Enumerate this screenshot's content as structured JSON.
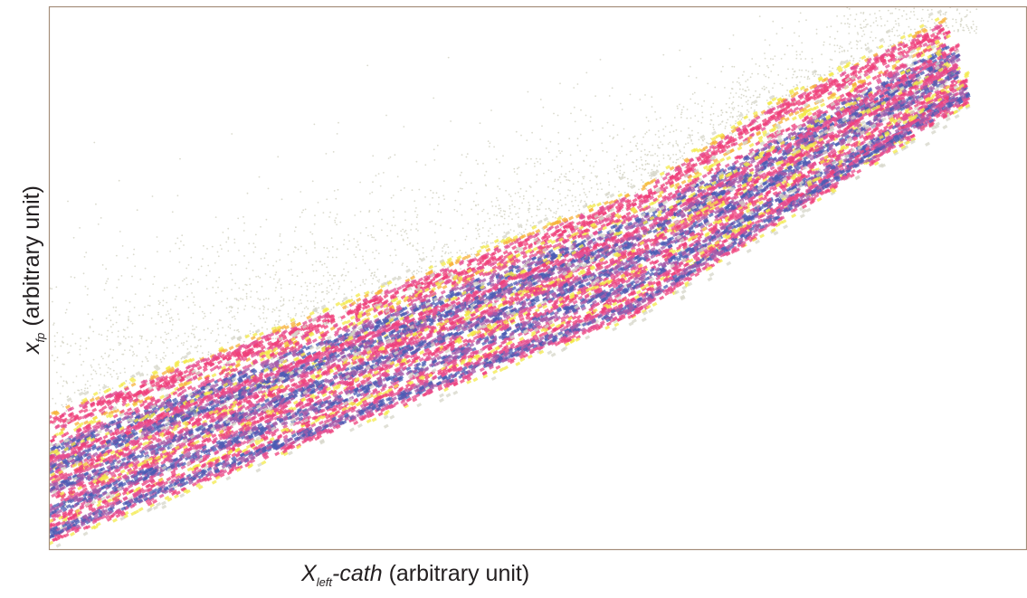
{
  "chart_data": {
    "type": "scatter",
    "xlabel": {
      "symbol": "X",
      "subscript": "left",
      "suffix": "-cath",
      "unit": "(arbitrary unit)"
    },
    "ylabel": {
      "symbol": "x",
      "subscript": "fp",
      "unit": "(arbitrary unit)"
    },
    "xlim": [
      0,
      1
    ],
    "ylim": [
      0,
      1
    ],
    "ticks": false,
    "grid": false,
    "legend": "none",
    "colormap": [
      "#d6d6c8",
      "#f3ea4a",
      "#f7b23a",
      "#ef3f7a",
      "#e44f92",
      "#a45aa8",
      "#4b5cb4"
    ],
    "bands": [
      {
        "x": [
          0.0,
          0.3,
          0.6,
          0.74,
          0.92
        ],
        "y": [
          0.23,
          0.43,
          0.64,
          0.8,
          0.96
        ],
        "width": 0.03,
        "weight": 0.7
      },
      {
        "x": [
          0.0,
          0.6,
          0.92
        ],
        "y": [
          0.18,
          0.6,
          0.92
        ],
        "width": 0.035,
        "weight": 0.85
      },
      {
        "x": [
          0.0,
          0.6,
          0.93
        ],
        "y": [
          0.15,
          0.57,
          0.91
        ],
        "width": 0.03,
        "weight": 1.0
      },
      {
        "x": [
          0.0,
          0.6,
          0.93
        ],
        "y": [
          0.11,
          0.53,
          0.88
        ],
        "width": 0.03,
        "weight": 1.0
      },
      {
        "x": [
          0.0,
          0.6,
          0.94
        ],
        "y": [
          0.07,
          0.49,
          0.85
        ],
        "width": 0.03,
        "weight": 0.95
      },
      {
        "x": [
          0.0,
          0.6,
          0.94
        ],
        "y": [
          0.03,
          0.45,
          0.84
        ],
        "width": 0.025,
        "weight": 0.9
      }
    ],
    "halo": {
      "density": "sparse",
      "side": "above"
    }
  }
}
